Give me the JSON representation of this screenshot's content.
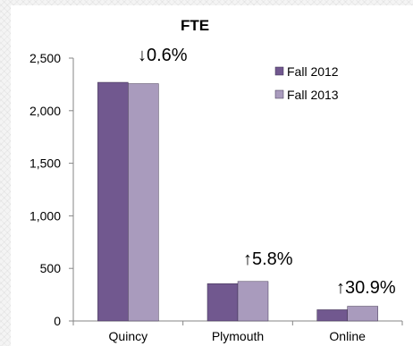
{
  "chart_data": {
    "type": "bar",
    "title": "FTE",
    "xlabel": "",
    "ylabel": "",
    "categories": [
      "Quincy",
      "Plymouth",
      "Online"
    ],
    "series": [
      {
        "name": "Fall 2012",
        "values": [
          2270,
          355,
          107
        ],
        "color": "#71588f"
      },
      {
        "name": "Fall 2013",
        "values": [
          2257,
          376,
          140
        ],
        "color": "#a99bbd"
      }
    ],
    "ylim": [
      0,
      2500
    ],
    "yticks": [
      0,
      500,
      1000,
      1500,
      2000,
      2500
    ],
    "ytick_labels": [
      "0",
      "500",
      "1,000",
      "1,500",
      "2,000",
      "2,500"
    ],
    "grid": false,
    "legend_position": "top-right",
    "annotations": [
      {
        "category": "Quincy",
        "text": "↓0.6%"
      },
      {
        "category": "Plymouth",
        "text": "↑5.8%"
      },
      {
        "category": "Online",
        "text": "↑30.9%"
      }
    ]
  }
}
